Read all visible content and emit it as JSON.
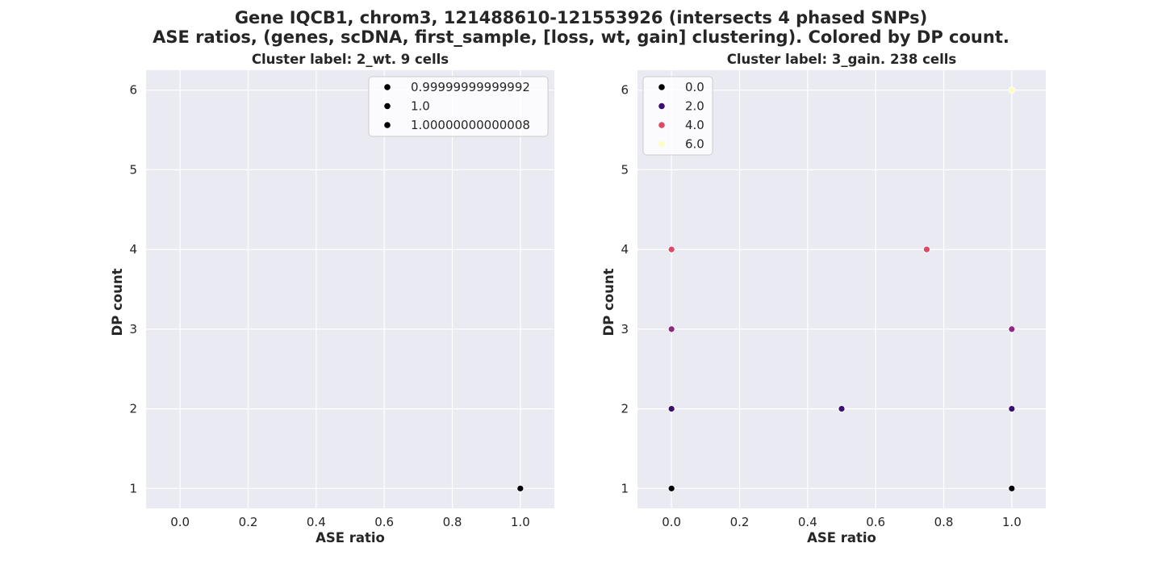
{
  "figure": {
    "title_line1": "Gene IQCB1, chrom3, 121488610-121553926 (intersects 4 phased SNPs)",
    "title_line2": "ASE ratios, (genes, scDNA, first_sample, [loss, wt, gain] clustering). Colored by DP count."
  },
  "chart_data": [
    {
      "type": "scatter",
      "title": "Cluster label: 2_wt. 9 cells",
      "xlabel": "ASE ratio",
      "ylabel": "DP count",
      "xlim": [
        -0.1,
        1.1
      ],
      "ylim": [
        0.75,
        6.25
      ],
      "xticks": [
        "0.0",
        "0.2",
        "0.4",
        "0.6",
        "0.8",
        "1.0"
      ],
      "yticks": [
        "1",
        "2",
        "3",
        "4",
        "5",
        "6"
      ],
      "grid": true,
      "legend_position": "top-right",
      "legend": [
        {
          "label": "0.99999999999992",
          "color": "#000004"
        },
        {
          "label": "1.0",
          "color": "#000004"
        },
        {
          "label": "1.00000000000008",
          "color": "#000004"
        }
      ],
      "points": [
        {
          "x": 1.0,
          "y": 1,
          "color": "#000004"
        }
      ]
    },
    {
      "type": "scatter",
      "title": "Cluster label: 3_gain. 238 cells",
      "xlabel": "ASE ratio",
      "ylabel": "DP count",
      "xlim": [
        -0.1,
        1.1
      ],
      "ylim": [
        0.75,
        6.25
      ],
      "xticks": [
        "0.0",
        "0.2",
        "0.4",
        "0.6",
        "0.8",
        "1.0"
      ],
      "yticks": [
        "1",
        "2",
        "3",
        "4",
        "5",
        "6"
      ],
      "grid": true,
      "legend_position": "top-left",
      "legend": [
        {
          "label": "0.0",
          "color": "#000004"
        },
        {
          "label": "2.0",
          "color": "#3b0f70"
        },
        {
          "label": "4.0",
          "color": "#de4968"
        },
        {
          "label": "6.0",
          "color": "#fcfdbf"
        }
      ],
      "points": [
        {
          "x": 0.0,
          "y": 1,
          "color": "#000004"
        },
        {
          "x": 1.0,
          "y": 1,
          "color": "#000004"
        },
        {
          "x": 0.0,
          "y": 2,
          "color": "#3b0f70"
        },
        {
          "x": 0.5,
          "y": 2,
          "color": "#3b0f70"
        },
        {
          "x": 1.0,
          "y": 2,
          "color": "#3b0f70"
        },
        {
          "x": 0.0,
          "y": 3,
          "color": "#8c2981"
        },
        {
          "x": 1.0,
          "y": 3,
          "color": "#8c2981"
        },
        {
          "x": 0.0,
          "y": 4,
          "color": "#de4968"
        },
        {
          "x": 0.75,
          "y": 4,
          "color": "#de4968"
        },
        {
          "x": 1.0,
          "y": 6,
          "color": "#fcfdbf"
        }
      ]
    }
  ]
}
